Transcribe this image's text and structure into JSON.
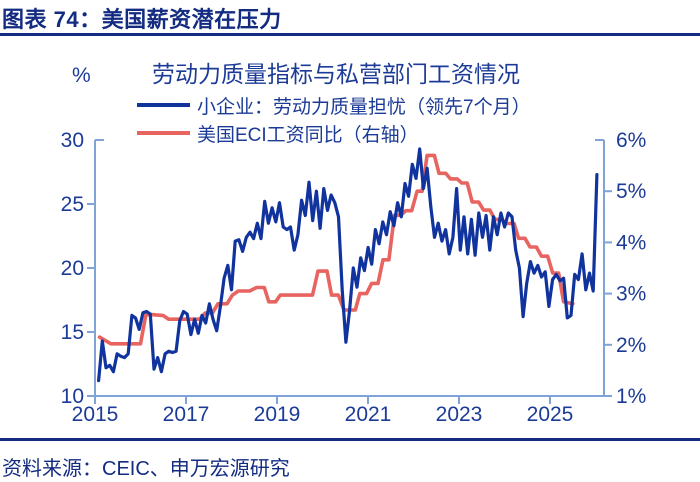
{
  "header": {
    "title": "图表 74：美国薪资潜在压力"
  },
  "source": {
    "text": "资料来源：CEIC、申万宏源研究"
  },
  "colors": {
    "navy_text": "#1c3b97",
    "dark_navy": "#132c82",
    "axis": "#7fa3d7",
    "blue_line": "#10339e",
    "red_line": "#e86461"
  },
  "chart_data": {
    "type": "line",
    "title": "劳动力质量指标与私营部门工资情况",
    "x_range": [
      2015,
      2026.19
    ],
    "x_ticks": [
      "2015",
      "2017",
      "2019",
      "2021",
      "2023",
      "2025"
    ],
    "x_tick_years": [
      2015,
      2017,
      2019,
      2021,
      2023,
      2025
    ],
    "grid": false,
    "legend_position": "top",
    "left_axis": {
      "unit": "%",
      "labels": [
        "30",
        "25",
        "20",
        "15",
        "10"
      ],
      "values": [
        30,
        25,
        20,
        15,
        10
      ],
      "range": [
        10,
        30
      ]
    },
    "right_axis": {
      "labels": [
        "6%",
        "5%",
        "4%",
        "3%",
        "2%",
        "1%"
      ],
      "values": [
        6,
        5,
        4,
        3,
        2,
        1
      ],
      "range": [
        1,
        6
      ]
    },
    "series": [
      {
        "name": "小企业：劳动力质量担忧（领先7个月）",
        "axis": "left",
        "color": "#10339e",
        "t_start": 2015.08,
        "t_end": 2026.03,
        "values": [
          11.2,
          14.3,
          12.2,
          12.4,
          11.9,
          13.3,
          13.1,
          13.0,
          13.3,
          16.3,
          16.1,
          15.2,
          16.5,
          16.6,
          16.4,
          12.1,
          13.0,
          11.9,
          13.3,
          13.5,
          13.4,
          13.5,
          15.9,
          16.6,
          16.4,
          14.8,
          16.0,
          14.9,
          16.3,
          15.7,
          17.2,
          16.0,
          15.1,
          17.0,
          19.2,
          20.2,
          18.3,
          22.1,
          22.2,
          21.3,
          22.4,
          22.8,
          22.3,
          23.5,
          22.3,
          25.2,
          23.5,
          24.7,
          23.6,
          25.1,
          23.2,
          23.0,
          23.2,
          21.4,
          22.6,
          25.3,
          24.1,
          26.7,
          23.7,
          26.0,
          23.1,
          26.2,
          24.5,
          25.7,
          25.1,
          24.0,
          18.3,
          14.2,
          16.7,
          20.0,
          18.5,
          20.8,
          19.8,
          21.6,
          20.3,
          23.0,
          21.9,
          23.6,
          22.6,
          24.4,
          23.3,
          25.1,
          24.0,
          26.6,
          25.6,
          28.1,
          27.0,
          29.3,
          26.2,
          27.8,
          24.8,
          22.4,
          23.5,
          22.1,
          23.0,
          21.1,
          22.4,
          26.2,
          21.4,
          24.0,
          21.1,
          23.8,
          21.0,
          24.3,
          22.4,
          24.1,
          21.4,
          24.0,
          22.6,
          24.3,
          23.2,
          24.3,
          24.0,
          21.4,
          20.0,
          16.2,
          18.8,
          20.5,
          19.6,
          20.2,
          19.3,
          19.7,
          17.0,
          19.1,
          19.5,
          19.0,
          19.2,
          16.1,
          16.3,
          19.5,
          19.1,
          21.1,
          18.3,
          19.6,
          18.2,
          27.3
        ]
      },
      {
        "name": "美国ECI工资同比（右轴）",
        "axis": "right",
        "color": "#e86461",
        "points": [
          [
            2015.1,
            2.15
          ],
          [
            2015.35,
            2.02
          ],
          [
            2016.0,
            2.02
          ],
          [
            2016.12,
            2.6
          ],
          [
            2016.5,
            2.57
          ],
          [
            2016.62,
            2.5
          ],
          [
            2017.3,
            2.5
          ],
          [
            2017.42,
            2.62
          ],
          [
            2017.58,
            2.62
          ],
          [
            2017.7,
            2.8
          ],
          [
            2017.9,
            2.8
          ],
          [
            2018.02,
            2.97
          ],
          [
            2018.15,
            3.05
          ],
          [
            2018.4,
            3.05
          ],
          [
            2018.55,
            3.12
          ],
          [
            2018.72,
            3.12
          ],
          [
            2018.82,
            2.84
          ],
          [
            2018.97,
            2.84
          ],
          [
            2019.07,
            2.97
          ],
          [
            2019.78,
            2.97
          ],
          [
            2019.9,
            3.44
          ],
          [
            2020.1,
            3.44
          ],
          [
            2020.2,
            2.97
          ],
          [
            2020.35,
            2.97
          ],
          [
            2020.47,
            2.68
          ],
          [
            2020.72,
            2.68
          ],
          [
            2020.82,
            3.0
          ],
          [
            2020.97,
            3.0
          ],
          [
            2021.08,
            3.2
          ],
          [
            2021.22,
            3.2
          ],
          [
            2021.33,
            3.66
          ],
          [
            2021.46,
            3.66
          ],
          [
            2021.58,
            4.53
          ],
          [
            2021.72,
            4.53
          ],
          [
            2021.83,
            4.62
          ],
          [
            2021.96,
            4.62
          ],
          [
            2022.08,
            5.0
          ],
          [
            2022.19,
            5.0
          ],
          [
            2022.3,
            5.7
          ],
          [
            2022.46,
            5.7
          ],
          [
            2022.56,
            5.35
          ],
          [
            2022.71,
            5.35
          ],
          [
            2022.81,
            5.24
          ],
          [
            2022.96,
            5.24
          ],
          [
            2023.06,
            5.16
          ],
          [
            2023.18,
            5.16
          ],
          [
            2023.29,
            4.79
          ],
          [
            2023.43,
            4.79
          ],
          [
            2023.54,
            4.63
          ],
          [
            2023.68,
            4.63
          ],
          [
            2023.79,
            4.45
          ],
          [
            2023.93,
            4.45
          ],
          [
            2024.04,
            4.37
          ],
          [
            2024.21,
            4.37
          ],
          [
            2024.31,
            4.08
          ],
          [
            2024.45,
            4.08
          ],
          [
            2024.56,
            3.91
          ],
          [
            2024.7,
            3.91
          ],
          [
            2024.81,
            3.73
          ],
          [
            2024.95,
            3.73
          ],
          [
            2025.06,
            3.4
          ],
          [
            2025.19,
            3.4
          ],
          [
            2025.3,
            2.84
          ],
          [
            2025.5,
            2.8
          ]
        ]
      }
    ]
  }
}
